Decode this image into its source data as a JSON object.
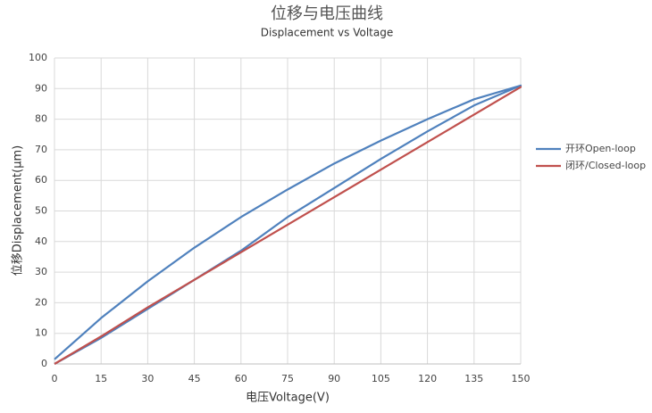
{
  "chart_data": {
    "type": "line",
    "title": "位移与电压曲线",
    "subtitle": "Displacement vs Voltage",
    "x_label": "电压Voltage(V)",
    "y_label": "位移Displacement(μm)",
    "x": [
      0,
      15,
      30,
      45,
      60,
      75,
      90,
      105,
      120,
      135,
      150,
      135,
      120,
      105,
      90,
      75,
      60,
      45,
      30,
      15,
      0
    ],
    "series": [
      {
        "name": "开环Open-loop",
        "color": "#4f81bd",
        "values": [
          0,
          8.5,
          18,
          27.5,
          37,
          48,
          57.5,
          67,
          76,
          84.5,
          91,
          86.5,
          80,
          73,
          65.5,
          57,
          48,
          38,
          27,
          15,
          1.5
        ]
      },
      {
        "name": "闭环/Closed-loop",
        "color": "#c0504d",
        "values": [
          0,
          9,
          18.5,
          27.5,
          36.5,
          45.5,
          54.5,
          63.5,
          72.5,
          81.5,
          90.5,
          81.5,
          72.5,
          63.5,
          54.5,
          45.5,
          36.5,
          27.5,
          18.5,
          9,
          0
        ]
      }
    ],
    "xlim": [
      0,
      150
    ],
    "xticks": [
      0,
      15,
      30,
      45,
      60,
      75,
      90,
      105,
      120,
      135,
      150
    ],
    "ylim": [
      0,
      100
    ],
    "yticks": [
      0,
      10,
      20,
      30,
      40,
      50,
      60,
      70,
      80,
      90,
      100
    ],
    "grid": true,
    "legend": "right"
  }
}
